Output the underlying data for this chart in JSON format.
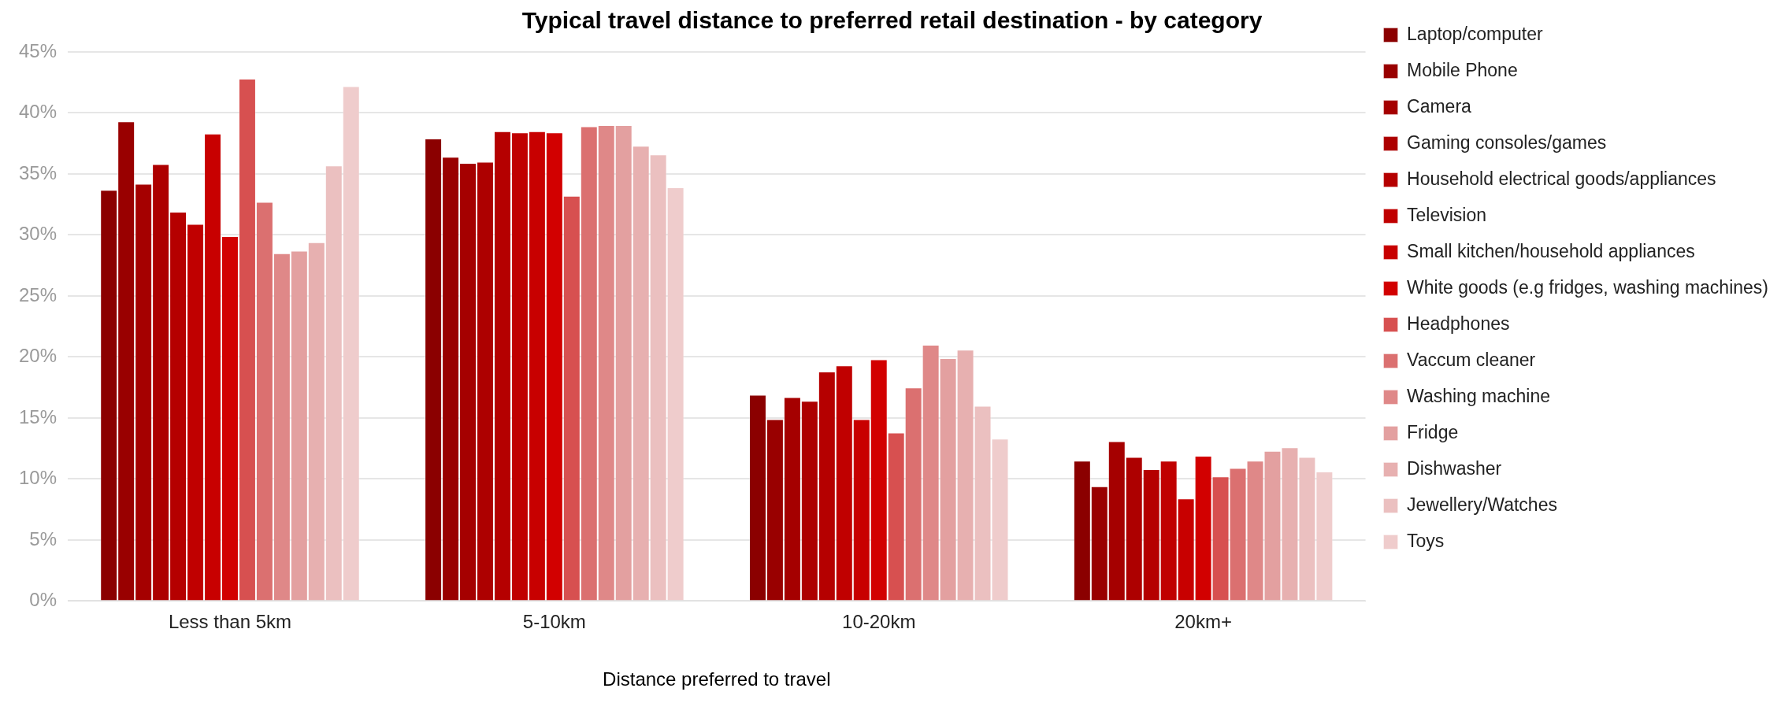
{
  "chart_data": {
    "type": "bar",
    "title": "Typical travel distance to preferred retail destination - by category",
    "xlabel": "Distance preferred to travel",
    "categories": [
      "Less than 5km",
      "5-10km",
      "10-20km",
      "20km+"
    ],
    "series": [
      {
        "name": "Laptop/computer",
        "color": "#8b0000",
        "values": [
          33.7,
          37.9,
          16.9,
          11.5
        ]
      },
      {
        "name": "Mobile Phone",
        "color": "#990000",
        "values": [
          39.3,
          36.4,
          14.9,
          9.4
        ]
      },
      {
        "name": "Camera",
        "color": "#a50000",
        "values": [
          34.2,
          35.9,
          16.7,
          13.1
        ]
      },
      {
        "name": "Gaming consoles/games",
        "color": "#ad0000",
        "values": [
          35.8,
          36.0,
          16.4,
          11.8
        ]
      },
      {
        "name": "Household electrical goods/appliances",
        "color": "#b50000",
        "values": [
          31.9,
          38.5,
          18.8,
          10.8
        ]
      },
      {
        "name": "Television",
        "color": "#c00000",
        "values": [
          30.9,
          38.4,
          19.3,
          11.5
        ]
      },
      {
        "name": "Small kitchen/household appliances",
        "color": "#c80000",
        "values": [
          38.3,
          38.5,
          14.9,
          8.4
        ]
      },
      {
        "name": "White goods (e.g fridges, washing machines)",
        "color": "#d20000",
        "values": [
          29.9,
          38.4,
          19.8,
          11.9
        ]
      },
      {
        "name": "Headphones",
        "color": "#d75050",
        "values": [
          42.8,
          33.2,
          13.8,
          10.2
        ]
      },
      {
        "name": "Vaccum cleaner",
        "color": "#db7070",
        "values": [
          32.7,
          38.9,
          17.5,
          10.9
        ]
      },
      {
        "name": "Washing machine",
        "color": "#df8888",
        "values": [
          28.5,
          39.0,
          21.0,
          11.5
        ]
      },
      {
        "name": "Fridge",
        "color": "#e3a0a0",
        "values": [
          28.7,
          39.0,
          19.9,
          12.3
        ]
      },
      {
        "name": "Dishwasher",
        "color": "#e7b0b0",
        "values": [
          29.4,
          37.3,
          20.6,
          12.6
        ]
      },
      {
        "name": "Jewellery/Watches",
        "color": "#ebc0c0",
        "values": [
          35.7,
          36.6,
          16.0,
          11.8
        ]
      },
      {
        "name": "Toys",
        "color": "#efcccc",
        "values": [
          42.2,
          33.9,
          13.3,
          10.6
        ]
      }
    ],
    "ylim": [
      0,
      45
    ],
    "yticks": [
      {
        "value": 0,
        "label": "0%"
      },
      {
        "value": 5,
        "label": "5%"
      },
      {
        "value": 10,
        "label": "10%"
      },
      {
        "value": 15,
        "label": "15%"
      },
      {
        "value": 20,
        "label": "20%"
      },
      {
        "value": 25,
        "label": "25%"
      },
      {
        "value": 30,
        "label": "30%"
      },
      {
        "value": 35,
        "label": "35%"
      },
      {
        "value": 40,
        "label": "40%"
      },
      {
        "value": 45,
        "label": "45%"
      }
    ],
    "grid": "y",
    "legend": "right"
  }
}
